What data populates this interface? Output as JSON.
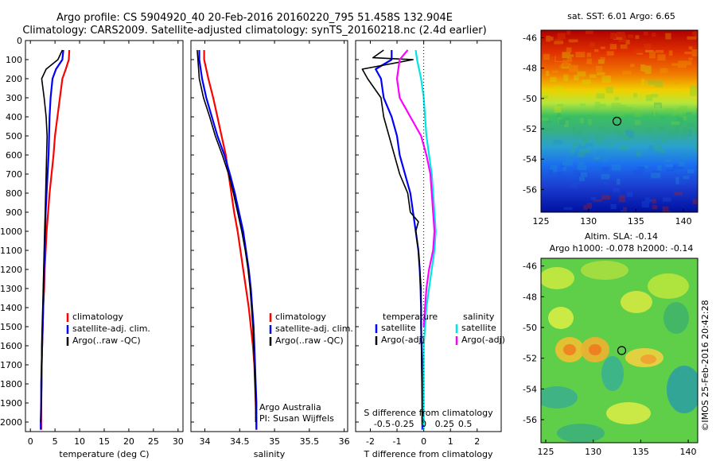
{
  "header": {
    "line1": "Argo profile: CS 5904920_40 20-Feb-2016 20160220_795 51.458S 132.904E",
    "line2": "Climatology: CARS2009. Satellite-adjusted climatology: synTS_20160218.nc (2.4d earlier)"
  },
  "colors": {
    "climatology": "#ff0000",
    "satellite": "#0000ff",
    "argo": "#000000",
    "sat_salinity": "#00e5e5",
    "argo_salinity": "#ff00ff"
  },
  "chart_data": [
    {
      "type": "line",
      "id": "temperature",
      "xlabel": "temperature (deg C)",
      "xlim": [
        -1,
        31
      ],
      "ylim": [
        2050,
        0
      ],
      "xticks": [
        0,
        5,
        10,
        15,
        20,
        25,
        30
      ],
      "yticks": [
        0,
        100,
        200,
        300,
        400,
        500,
        600,
        700,
        800,
        900,
        1000,
        1100,
        1200,
        1300,
        1400,
        1500,
        1600,
        1700,
        1800,
        1900,
        2000
      ],
      "legend": [
        "climatology",
        "satellite-adj. clim.",
        "Argo(..raw -QC)"
      ],
      "series": [
        {
          "name": "climatology",
          "color": "#ff0000",
          "points": [
            [
              7.9,
              50
            ],
            [
              7.8,
              100
            ],
            [
              7.2,
              150
            ],
            [
              6.5,
              200
            ],
            [
              6,
              300
            ],
            [
              5.5,
              400
            ],
            [
              5,
              500
            ],
            [
              4.7,
              600
            ],
            [
              4.3,
              700
            ],
            [
              3.9,
              800
            ],
            [
              3.6,
              900
            ],
            [
              3.3,
              1000
            ],
            [
              3.1,
              1100
            ],
            [
              2.9,
              1200
            ],
            [
              2.8,
              1300
            ],
            [
              2.6,
              1400
            ],
            [
              2.5,
              1500
            ],
            [
              2.4,
              1600
            ],
            [
              2.3,
              1700
            ],
            [
              2.3,
              1800
            ],
            [
              2.2,
              1900
            ],
            [
              2.2,
              2000
            ],
            [
              2.2,
              2040
            ]
          ]
        },
        {
          "name": "satellite-adj. clim.",
          "color": "#0000ff",
          "points": [
            [
              6.7,
              50
            ],
            [
              6.5,
              100
            ],
            [
              5.2,
              150
            ],
            [
              4.5,
              200
            ],
            [
              4.1,
              300
            ],
            [
              3.9,
              400
            ],
            [
              3.8,
              500
            ],
            [
              3.7,
              600
            ],
            [
              3.5,
              700
            ],
            [
              3.3,
              800
            ],
            [
              3.1,
              900
            ],
            [
              3,
              1000
            ],
            [
              2.9,
              1100
            ],
            [
              2.8,
              1200
            ],
            [
              2.7,
              1300
            ],
            [
              2.6,
              1400
            ],
            [
              2.5,
              1500
            ],
            [
              2.4,
              1600
            ],
            [
              2.3,
              1700
            ],
            [
              2.2,
              1800
            ],
            [
              2.2,
              1900
            ],
            [
              2.1,
              2000
            ],
            [
              2.1,
              2040
            ]
          ]
        },
        {
          "name": "Argo(..raw -QC)",
          "color": "#000000",
          "points": [
            [
              6.5,
              50
            ],
            [
              5.6,
              100
            ],
            [
              3.2,
              150
            ],
            [
              2.3,
              200
            ],
            [
              2.8,
              300
            ],
            [
              3.2,
              400
            ],
            [
              3.4,
              500
            ],
            [
              3.3,
              600
            ],
            [
              3.2,
              700
            ],
            [
              3.1,
              800
            ],
            [
              3,
              900
            ],
            [
              2.9,
              1000
            ],
            [
              2.8,
              1100
            ],
            [
              2.7,
              1200
            ],
            [
              2.6,
              1300
            ],
            [
              2.5,
              1400
            ],
            [
              2.4,
              1500
            ],
            [
              2.3,
              1600
            ],
            [
              2.3,
              1700
            ],
            [
              2.2,
              1800
            ],
            [
              2.2,
              1900
            ],
            [
              2.1,
              2000
            ]
          ]
        }
      ]
    },
    {
      "type": "line",
      "id": "salinity",
      "xlabel": "salinity",
      "xlim": [
        33.8,
        36.05
      ],
      "ylim": [
        2050,
        0
      ],
      "xticks": [
        34,
        34.5,
        35,
        35.5,
        36
      ],
      "legend": [
        "climatology",
        "satellite-adj. clim.",
        "Argo(..raw -QC)"
      ],
      "annotation": [
        "Argo Australia",
        "PI: Susan Wijffels"
      ],
      "series": [
        {
          "name": "climatology",
          "color": "#ff0000",
          "points": [
            [
              33.99,
              50
            ],
            [
              33.99,
              100
            ],
            [
              34.05,
              200
            ],
            [
              34.12,
              300
            ],
            [
              34.18,
              400
            ],
            [
              34.24,
              500
            ],
            [
              34.3,
              600
            ],
            [
              34.34,
              700
            ],
            [
              34.38,
              800
            ],
            [
              34.42,
              900
            ],
            [
              34.47,
              1000
            ],
            [
              34.51,
              1100
            ],
            [
              34.55,
              1200
            ],
            [
              34.59,
              1300
            ],
            [
              34.63,
              1400
            ],
            [
              34.66,
              1500
            ],
            [
              34.69,
              1600
            ],
            [
              34.71,
              1700
            ],
            [
              34.72,
              1800
            ],
            [
              34.73,
              1900
            ],
            [
              34.74,
              2000
            ],
            [
              34.74,
              2040
            ]
          ]
        },
        {
          "name": "satellite-adj. clim.",
          "color": "#0000ff",
          "points": [
            [
              33.92,
              50
            ],
            [
              33.92,
              100
            ],
            [
              33.96,
              200
            ],
            [
              34.02,
              300
            ],
            [
              34.1,
              400
            ],
            [
              34.18,
              500
            ],
            [
              34.28,
              600
            ],
            [
              34.36,
              700
            ],
            [
              34.43,
              800
            ],
            [
              34.49,
              900
            ],
            [
              34.55,
              1000
            ],
            [
              34.59,
              1100
            ],
            [
              34.63,
              1200
            ],
            [
              34.66,
              1300
            ],
            [
              34.68,
              1400
            ],
            [
              34.7,
              1500
            ],
            [
              34.71,
              1600
            ],
            [
              34.72,
              1700
            ],
            [
              34.73,
              1800
            ],
            [
              34.74,
              1900
            ],
            [
              34.74,
              2000
            ],
            [
              34.74,
              2040
            ]
          ]
        },
        {
          "name": "Argo(..raw -QC)",
          "color": "#000000",
          "points": [
            [
              33.89,
              50
            ],
            [
              33.9,
              100
            ],
            [
              33.92,
              200
            ],
            [
              33.98,
              300
            ],
            [
              34.07,
              400
            ],
            [
              34.15,
              500
            ],
            [
              34.25,
              600
            ],
            [
              34.34,
              700
            ],
            [
              34.41,
              800
            ],
            [
              34.47,
              900
            ],
            [
              34.53,
              1000
            ],
            [
              34.58,
              1100
            ],
            [
              34.62,
              1200
            ],
            [
              34.65,
              1300
            ],
            [
              34.67,
              1400
            ],
            [
              34.69,
              1500
            ],
            [
              34.7,
              1600
            ],
            [
              34.71,
              1700
            ],
            [
              34.72,
              1800
            ],
            [
              34.73,
              1900
            ],
            [
              34.73,
              2000
            ]
          ]
        }
      ]
    },
    {
      "type": "line",
      "id": "differences",
      "xlabel": "T difference from climatology",
      "xlabel_top": "S difference from climatology",
      "xlim": [
        -2.55,
        2.9
      ],
      "ylim": [
        2050,
        0
      ],
      "xticks": [
        -2,
        -1,
        0,
        1,
        2
      ],
      "xticks_s": [
        "-0.5",
        "-0.25",
        "0",
        "0.25",
        "0.5"
      ],
      "legend_temperature": {
        "title": "temperature",
        "items": [
          "satellite",
          "Argo(-adj)"
        ]
      },
      "legend_salinity": {
        "title": "salinity",
        "items": [
          "satellite",
          "Argo(-adj)"
        ]
      },
      "series": [
        {
          "name": "temperature satellite",
          "color": "#0000ff",
          "points": [
            [
              -1.2,
              50
            ],
            [
              -1.2,
              100
            ],
            [
              -1.8,
              150
            ],
            [
              -1.6,
              200
            ],
            [
              -1.5,
              300
            ],
            [
              -1.2,
              400
            ],
            [
              -1,
              500
            ],
            [
              -0.9,
              600
            ],
            [
              -0.7,
              700
            ],
            [
              -0.5,
              800
            ],
            [
              -0.4,
              900
            ],
            [
              -0.3,
              1000
            ],
            [
              -0.2,
              1100
            ],
            [
              -0.15,
              1200
            ],
            [
              -0.12,
              1300
            ],
            [
              -0.1,
              1400
            ],
            [
              -0.1,
              1500
            ],
            [
              -0.08,
              1600
            ],
            [
              -0.06,
              1700
            ],
            [
              -0.05,
              1800
            ],
            [
              -0.05,
              1900
            ],
            [
              -0.05,
              2000
            ],
            [
              -0.05,
              2040
            ]
          ]
        },
        {
          "name": "temperature Argo(-adj)",
          "color": "#000000",
          "points": [
            [
              -1.5,
              50
            ],
            [
              -1.9,
              90
            ],
            [
              -0.4,
              100
            ],
            [
              -2.3,
              150
            ],
            [
              -2.1,
              200
            ],
            [
              -1.6,
              300
            ],
            [
              -1.5,
              400
            ],
            [
              -1.3,
              500
            ],
            [
              -1.1,
              600
            ],
            [
              -0.9,
              700
            ],
            [
              -0.6,
              800
            ],
            [
              -0.5,
              900
            ],
            [
              -0.2,
              950
            ],
            [
              -0.3,
              1000
            ],
            [
              -0.2,
              1100
            ],
            [
              -0.15,
              1200
            ],
            [
              -0.1,
              1300
            ],
            [
              -0.1,
              1400
            ],
            [
              -0.1,
              1500
            ],
            [
              -0.08,
              1600
            ],
            [
              -0.08,
              1700
            ],
            [
              -0.07,
              1800
            ],
            [
              -0.06,
              1900
            ],
            [
              -0.06,
              2000
            ]
          ]
        },
        {
          "name": "salinity satellite",
          "color": "#00e5e5",
          "points": [
            [
              -0.3,
              50
            ],
            [
              -0.25,
              100
            ],
            [
              -0.1,
              200
            ],
            [
              0,
              300
            ],
            [
              0.05,
              400
            ],
            [
              0.1,
              500
            ],
            [
              0.2,
              600
            ],
            [
              0.3,
              700
            ],
            [
              0.35,
              800
            ],
            [
              0.4,
              900
            ],
            [
              0.45,
              1000
            ],
            [
              0.4,
              1100
            ],
            [
              0.3,
              1200
            ],
            [
              0.2,
              1300
            ],
            [
              0.1,
              1400
            ],
            [
              0.05,
              1500
            ],
            [
              0,
              1600
            ],
            [
              0,
              1700
            ],
            [
              0,
              1800
            ],
            [
              0,
              1900
            ],
            [
              0,
              2000
            ],
            [
              0,
              2040
            ]
          ]
        },
        {
          "name": "salinity Argo(-adj)",
          "color": "#ff00ff",
          "points": [
            [
              -0.6,
              50
            ],
            [
              -0.9,
              100
            ],
            [
              -1,
              200
            ],
            [
              -0.9,
              300
            ],
            [
              -0.5,
              400
            ],
            [
              -0.1,
              500
            ],
            [
              0.1,
              600
            ],
            [
              0.25,
              700
            ],
            [
              0.3,
              800
            ],
            [
              0.35,
              900
            ],
            [
              0.4,
              1000
            ],
            [
              0.35,
              1100
            ],
            [
              0.2,
              1200
            ],
            [
              0.1,
              1300
            ],
            [
              0.05,
              1400
            ],
            [
              0,
              1500
            ]
          ]
        }
      ]
    },
    {
      "type": "heatmap",
      "id": "sst_map",
      "title": "sat. SST: 6.01  Argo: 6.65",
      "xlim": [
        125,
        141.5
      ],
      "ylim": [
        -57.5,
        -45.5
      ],
      "xticks": [
        125,
        130,
        135,
        140
      ],
      "yticks": [
        -46,
        -48,
        -50,
        -52,
        -54,
        -56
      ],
      "marker": [
        133,
        -51.5
      ]
    },
    {
      "type": "heatmap",
      "id": "sla_map",
      "title_line1": "Altim. SLA: -0.14",
      "title_line2": "Argo h1000: -0.078 h2000: -0.14",
      "xlim": [
        124.5,
        141
      ],
      "ylim": [
        -57.5,
        -45.5
      ],
      "xticks": [
        125,
        130,
        135,
        140
      ],
      "yticks": [
        -46,
        -48,
        -50,
        -52,
        -54,
        -56
      ],
      "marker": [
        133,
        -51.5
      ],
      "credit": "©IMOS 25-Feb-2016 20:42:28"
    }
  ]
}
